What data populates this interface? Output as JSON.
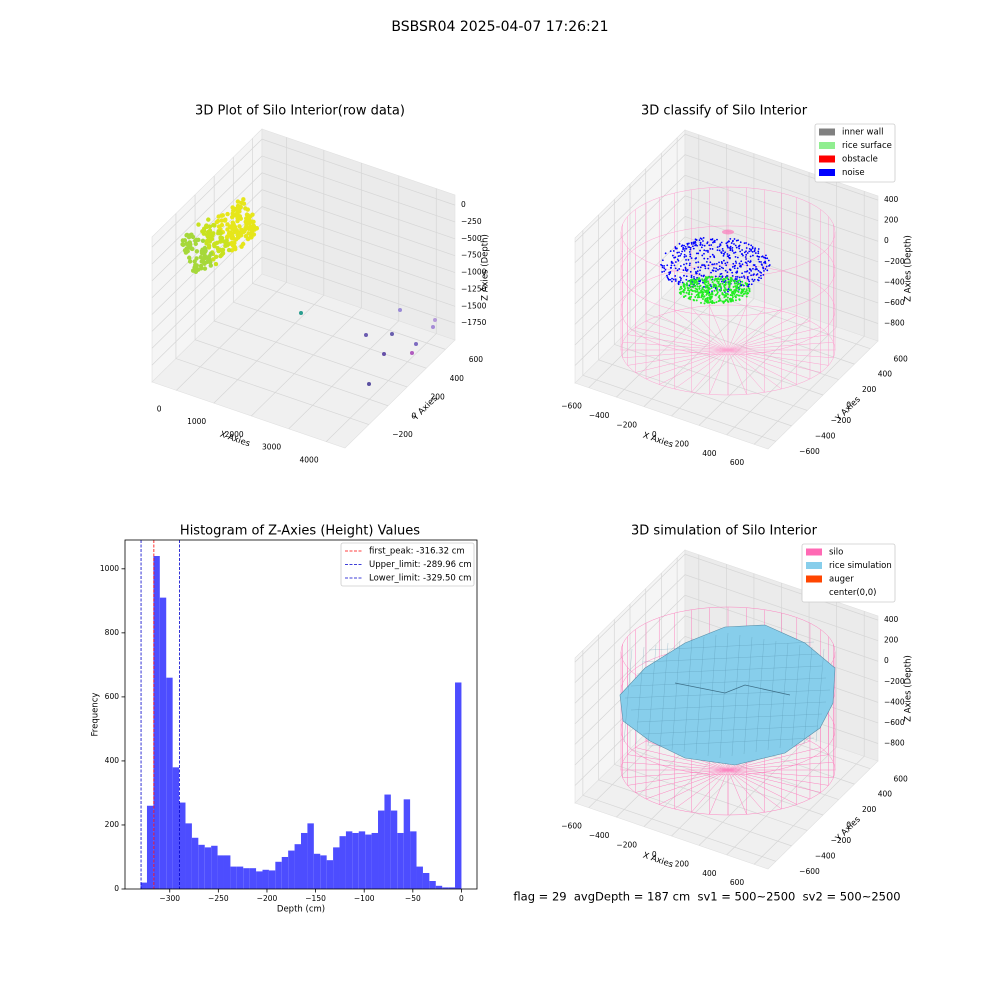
{
  "title": "BSBSR04 2025-04-07 17:26:21",
  "chart_data": [
    {
      "type": "scatter3d",
      "title": "3D Plot of Silo Interior(row data)",
      "xlabel": "X Axies",
      "ylabel": "Y Axies",
      "zlabel": "Z Axies (Depth)",
      "xlim": [
        -650,
        4500
      ],
      "ylim": [
        -450,
        700
      ],
      "zlim": [
        -2000,
        150
      ],
      "xticks": [
        0,
        1000,
        2000,
        3000,
        4000
      ],
      "yticks": [
        {
          "value": -200,
          "label": "−200"
        },
        0,
        200,
        400,
        600
      ],
      "zticks": [
        0,
        {
          "value": -250,
          "label": "−250"
        },
        {
          "value": -500,
          "label": "−500"
        },
        {
          "value": -750,
          "label": "−750"
        },
        {
          "value": -1000,
          "label": "−1000"
        },
        {
          "value": -1250,
          "label": "−1250"
        },
        {
          "value": -1500,
          "label": "−1500"
        },
        {
          "value": -1750,
          "label": "−1750"
        }
      ]
    },
    {
      "type": "classify3d",
      "title": "3D classify of Silo Interior",
      "xlabel": "X Axies",
      "ylabel": "Y Axies",
      "zlabel": "Z Axies (Depth)",
      "xlim": [
        -700,
        700
      ],
      "ylim": [
        -700,
        700
      ],
      "zlim": [
        -970,
        440
      ],
      "xticks": [
        {
          "value": -600,
          "label": "−600"
        },
        {
          "value": -400,
          "label": "−400"
        },
        {
          "value": -200,
          "label": "−200"
        },
        0,
        200,
        400,
        600
      ],
      "yticks": [
        {
          "value": -600,
          "label": "−600"
        },
        {
          "value": -400,
          "label": "−400"
        },
        {
          "value": -200,
          "label": "−200"
        },
        0,
        200,
        400,
        600
      ],
      "zticks": [
        400,
        200,
        0,
        {
          "value": -200,
          "label": "−200"
        },
        {
          "value": -400,
          "label": "−400"
        },
        {
          "value": -600,
          "label": "−600"
        },
        {
          "value": -800,
          "label": "−800"
        }
      ],
      "legend": [
        {
          "name": "inner wall",
          "color": "#808080"
        },
        {
          "name": "rice surface",
          "color": "#90ee90"
        },
        {
          "name": "obstacle",
          "color": "#ff0000"
        },
        {
          "name": "noise",
          "color": "#0000ff"
        }
      ]
    },
    {
      "type": "histogram",
      "title": "Histogram of Z-Axies (Height) Values",
      "xlabel": "Depth (cm)",
      "ylabel": "Frequency",
      "color": "#4d4dff",
      "bins": [
        -330,
        -323.4,
        -316.8,
        -310.2,
        -303.6,
        -297,
        -290.4,
        -283.8,
        -277.2,
        -270.6,
        -264,
        -257.4,
        -250.8,
        -244.2,
        -237.6,
        -231,
        -224.4,
        -217.8,
        -211.2,
        -204.6,
        -198,
        -191.4,
        -184.8,
        -178.2,
        -171.6,
        -165,
        -158.4,
        -151.8,
        -145.2,
        -138.6,
        -132,
        -125.4,
        -118.8,
        -112.2,
        -105.6,
        -99,
        -92.4,
        -85.8,
        -79.2,
        -72.6,
        -66,
        -59.4,
        -52.8,
        -46.2,
        -39.6,
        -33,
        -26.4,
        -19.8,
        -13.2,
        -6.6,
        0
      ],
      "values": [
        20,
        260,
        1040,
        910,
        660,
        380,
        270,
        205,
        160,
        138,
        130,
        135,
        105,
        105,
        70,
        70,
        65,
        65,
        55,
        60,
        58,
        85,
        100,
        120,
        140,
        175,
        205,
        110,
        105,
        90,
        130,
        165,
        180,
        175,
        180,
        170,
        175,
        245,
        295,
        245,
        175,
        280,
        180,
        70,
        50,
        25,
        10,
        5,
        5,
        645
      ],
      "xlim": [
        -346,
        16
      ],
      "ylim": [
        0,
        1090
      ],
      "xticks": [
        {
          "value": -300,
          "label": "−300"
        },
        {
          "value": -250,
          "label": "−250"
        },
        {
          "value": -200,
          "label": "−200"
        },
        {
          "value": -150,
          "label": "−150"
        },
        {
          "value": -100,
          "label": "−100"
        },
        {
          "value": -50,
          "label": "−50"
        },
        0
      ],
      "yticks": [
        0,
        200,
        400,
        600,
        800,
        1000
      ],
      "lines": [
        {
          "name": "first_peak: -316.32 cm",
          "value": -316.32,
          "color": "#ff0000"
        },
        {
          "name": "Upper_limit: -289.96 cm",
          "value": -289.96,
          "color": "#0000cc"
        },
        {
          "name": "Lower_limit: -329.50 cm",
          "value": -329.5,
          "color": "#0000cc"
        }
      ]
    },
    {
      "type": "surface3d",
      "title": "3D simulation of Silo Interior",
      "xlabel": "X Axies",
      "ylabel": "Y Axies",
      "zlabel": "Z Axies (Depth)",
      "xlim": [
        -700,
        700
      ],
      "ylim": [
        -700,
        700
      ],
      "zlim": [
        -970,
        440
      ],
      "xticks": [
        {
          "value": -600,
          "label": "−600"
        },
        {
          "value": -400,
          "label": "−400"
        },
        {
          "value": -200,
          "label": "−200"
        },
        0,
        200,
        400,
        600
      ],
      "yticks": [
        {
          "value": -600,
          "label": "−600"
        },
        {
          "value": -400,
          "label": "−400"
        },
        {
          "value": -200,
          "label": "−200"
        },
        0,
        200,
        400,
        600
      ],
      "zticks": [
        400,
        200,
        0,
        {
          "value": -200,
          "label": "−200"
        },
        {
          "value": -400,
          "label": "−400"
        },
        {
          "value": -600,
          "label": "−600"
        },
        {
          "value": -800,
          "label": "−800"
        }
      ],
      "legend": [
        {
          "name": "silo",
          "color": "#ff69b4"
        },
        {
          "name": "rice simulation",
          "color": "#87ceeb"
        },
        {
          "name": "auger",
          "color": "#ff4500"
        },
        {
          "name": "center(0,0)",
          "color": "#ffffff"
        }
      ]
    }
  ],
  "footer": "flag = 29  avgDepth = 187 cm  sv1 = 500~2500  sv2 = 500~2500"
}
